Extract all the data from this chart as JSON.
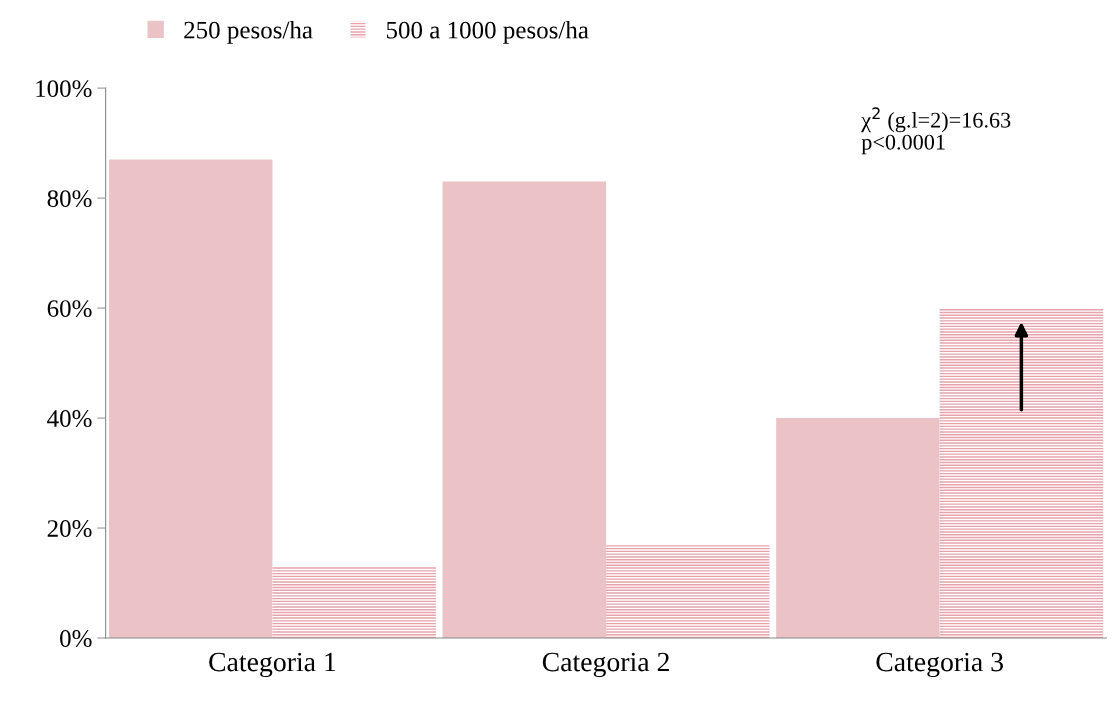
{
  "chart_data": {
    "type": "bar",
    "categories": [
      "Categoria 1",
      "Categoria 2",
      "Categoria 3"
    ],
    "series": [
      {
        "name": "250 pesos/ha",
        "color": "#ebc3c6",
        "values": [
          87,
          83,
          40
        ]
      },
      {
        "name": "500 a 1000 pesos/ha",
        "color": "#e8a2ab",
        "values": [
          13,
          17,
          60
        ]
      }
    ],
    "ylim": [
      0,
      100
    ],
    "yticks": [
      {
        "value": 0,
        "label": "0%"
      },
      {
        "value": 20,
        "label": "20%"
      },
      {
        "value": 40,
        "label": "40%"
      },
      {
        "value": 60,
        "label": "60%"
      },
      {
        "value": 80,
        "label": "80%"
      },
      {
        "value": 100,
        "label": "100%"
      }
    ],
    "annotations": [
      "χ$^{2}$ (g.l=2)=16.63\np<0.0001"
    ],
    "grid": false,
    "legend": "top"
  }
}
